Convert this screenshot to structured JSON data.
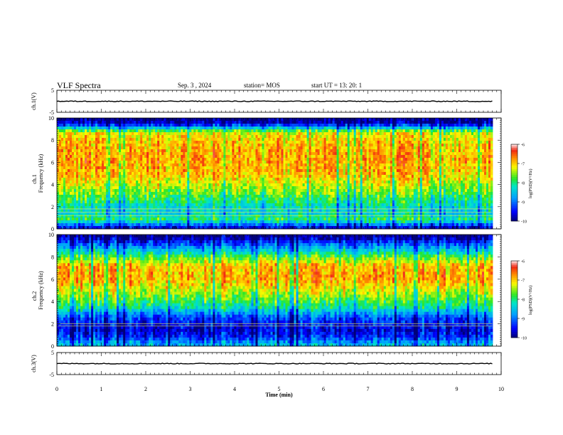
{
  "header": {
    "title": "VLF Spectra",
    "date": "Sep. 3 , 2024",
    "station": "station= MOS",
    "start": "start UT = 13: 20: 1"
  },
  "chart_data": [
    {
      "type": "line",
      "panel": "ch.1 voltage",
      "ylabel": "ch.1(V)",
      "ylim": [
        -5,
        5
      ],
      "yticks": [
        "5",
        "-5"
      ],
      "series": [
        {
          "x": [
            0,
            9.8
          ],
          "values": [
            0,
            0
          ]
        }
      ]
    },
    {
      "type": "heatmap",
      "panel": "ch.1 spectrogram",
      "ylabel_top": "ch.1",
      "ylabel": "Frequency (kHz)",
      "ylim": [
        0,
        10
      ],
      "yticks": [
        "0",
        "2",
        "4",
        "6",
        "8",
        "10"
      ],
      "x_extent": [
        0,
        9.8
      ],
      "colorbar": {
        "label": "log(PSD)(V²/Hz)",
        "range": [
          -10,
          -6
        ],
        "ticks": [
          "-6",
          "-7",
          "-8",
          "-9",
          "-10"
        ]
      },
      "profile": [
        {
          "f": 0.2,
          "level": -9.5
        },
        {
          "f": 0.8,
          "level": -7.9
        },
        {
          "f": 1.5,
          "level": -8.4
        },
        {
          "f": 2.5,
          "level": -8.0
        },
        {
          "f": 3.5,
          "level": -7.5
        },
        {
          "f": 5.0,
          "level": -6.9
        },
        {
          "f": 6.5,
          "level": -6.8
        },
        {
          "f": 8.0,
          "level": -7.0
        },
        {
          "f": 8.7,
          "level": -7.2
        },
        {
          "f": 9.0,
          "level": -8.2
        },
        {
          "f": 9.5,
          "level": -9.7
        },
        {
          "f": 10.0,
          "level": -10.0
        }
      ],
      "tones_khz": [
        1.2,
        1.5,
        1.8
      ]
    },
    {
      "type": "heatmap",
      "panel": "ch.2 spectrogram",
      "ylabel_top": "ch.2",
      "ylabel": "Frequency (kHz)",
      "ylim": [
        0,
        10
      ],
      "yticks": [
        "0",
        "2",
        "4",
        "6",
        "8",
        "10"
      ],
      "x_extent": [
        0,
        9.8
      ],
      "colorbar": {
        "label": "log(PSD)(V²/Hz)",
        "range": [
          -10,
          -6
        ],
        "ticks": [
          "-6",
          "-7",
          "-8",
          "-9",
          "-10"
        ]
      },
      "profile": [
        {
          "f": 0.2,
          "level": -8.6
        },
        {
          "f": 0.8,
          "level": -9.3
        },
        {
          "f": 1.5,
          "level": -9.6
        },
        {
          "f": 2.5,
          "level": -9.2
        },
        {
          "f": 3.5,
          "level": -8.1
        },
        {
          "f": 4.5,
          "level": -7.5
        },
        {
          "f": 6.0,
          "level": -6.8
        },
        {
          "f": 7.2,
          "level": -6.9
        },
        {
          "f": 8.0,
          "level": -7.7
        },
        {
          "f": 9.0,
          "level": -8.9
        },
        {
          "f": 9.7,
          "level": -9.8
        },
        {
          "f": 10.0,
          "level": -10.0
        }
      ],
      "tones_khz": [
        1.8,
        2.0
      ]
    },
    {
      "type": "line",
      "panel": "ch.3 voltage",
      "ylabel": "ch.3(V)",
      "ylim": [
        -5,
        5
      ],
      "yticks": [
        "5",
        "-5"
      ],
      "xlabel": "Time (min)",
      "xlim": [
        0,
        10
      ],
      "xticks": [
        "0",
        "1",
        "2",
        "3",
        "4",
        "5",
        "6",
        "7",
        "8",
        "9",
        "10"
      ],
      "series": [
        {
          "x": [
            0,
            9.8
          ],
          "values": [
            0,
            0
          ]
        }
      ]
    }
  ]
}
